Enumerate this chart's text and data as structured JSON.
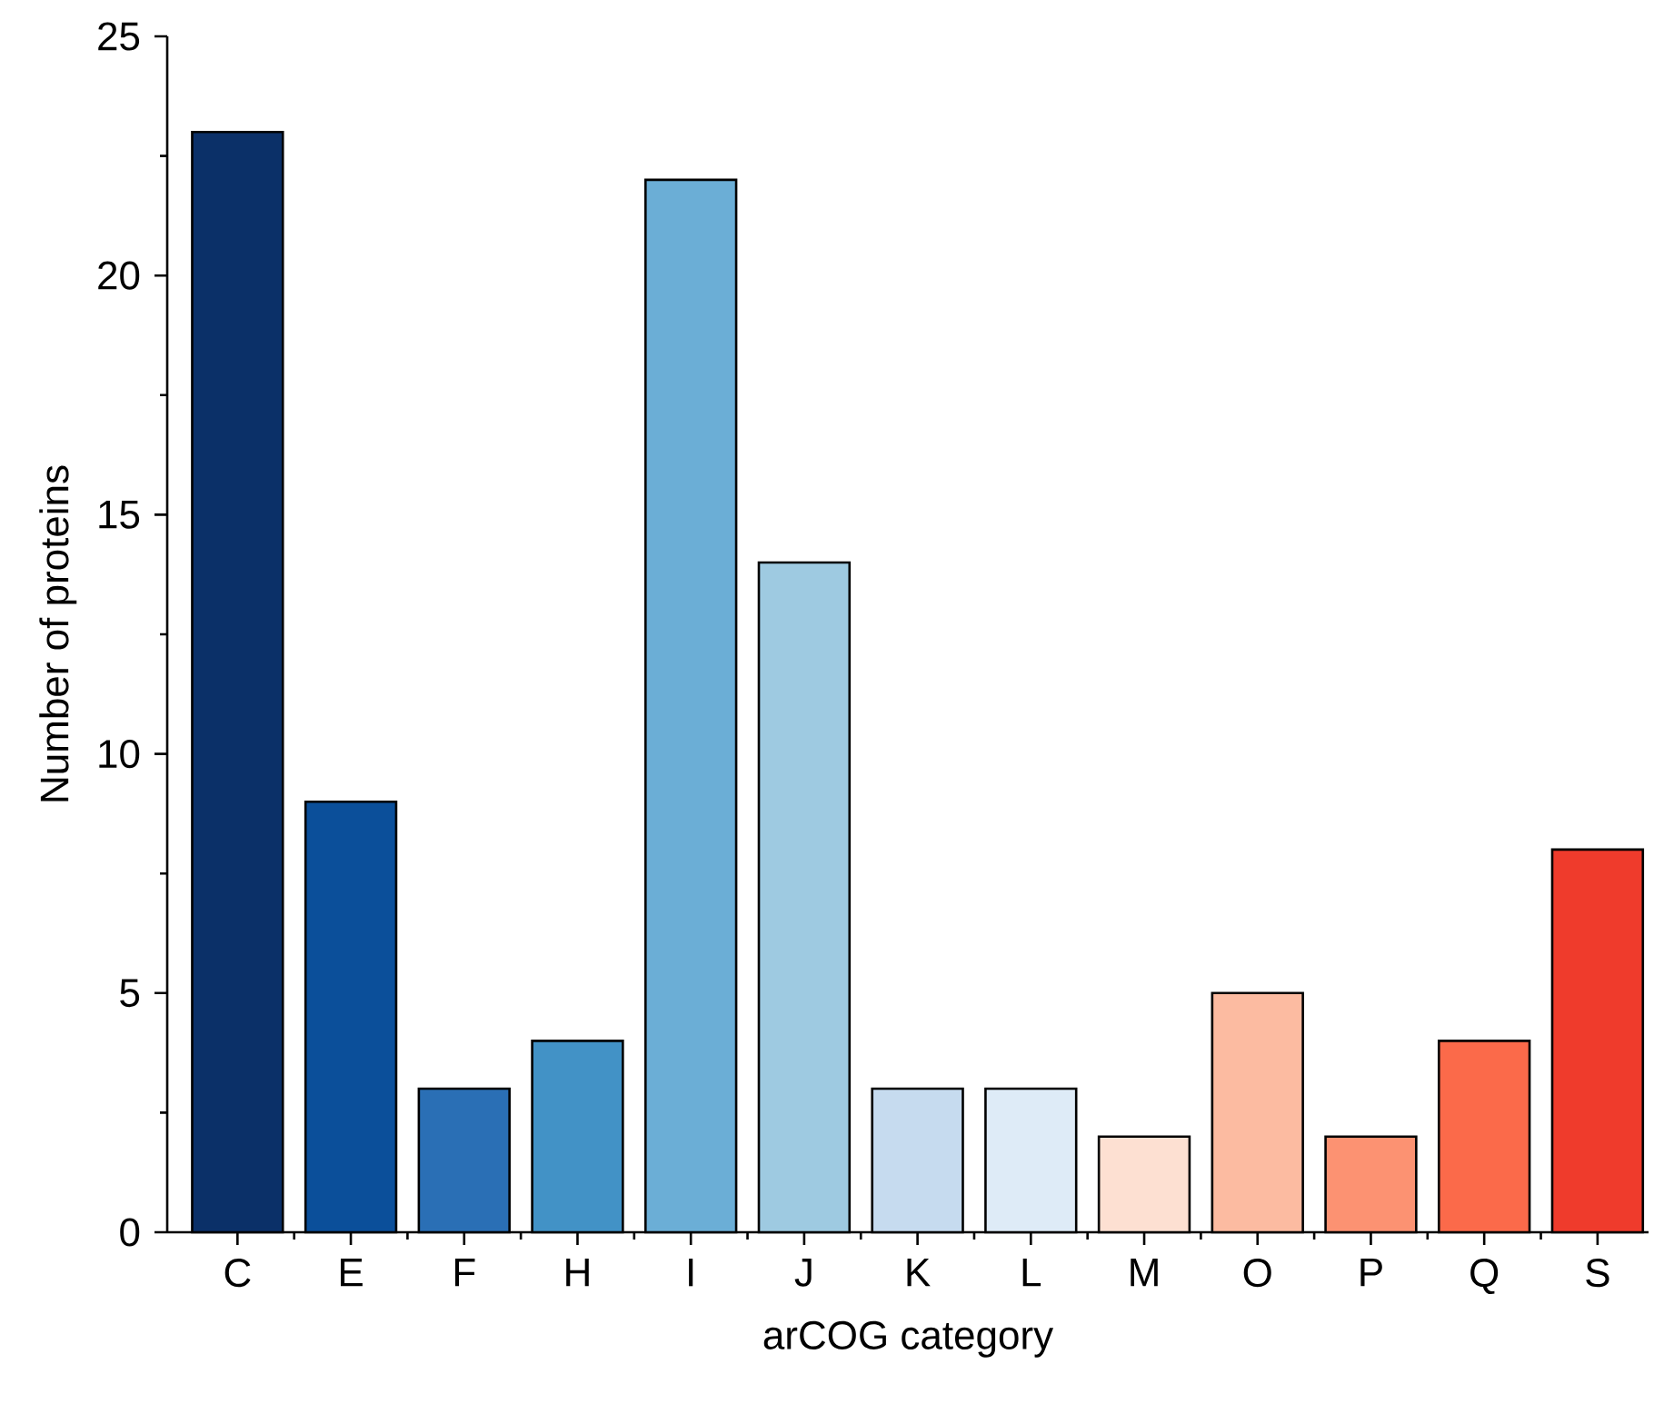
{
  "chart_data": {
    "type": "bar",
    "xlabel": "arCOG category",
    "ylabel": "Number of proteins",
    "categories": [
      "C",
      "E",
      "F",
      "H",
      "I",
      "J",
      "K",
      "L",
      "M",
      "O",
      "P",
      "Q",
      "S"
    ],
    "values": [
      23,
      9,
      3,
      4,
      22,
      14,
      3,
      3,
      2,
      5,
      2,
      4,
      8
    ],
    "colors": [
      "#0b3068",
      "#0b4f9a",
      "#2a6fb5",
      "#4292c6",
      "#6baed6",
      "#9ecae1",
      "#c6dbef",
      "#deebf7",
      "#fde0d2",
      "#fcbba1",
      "#fc9272",
      "#fb6a4a",
      "#ef3b2c"
    ],
    "ylim": [
      0,
      25
    ],
    "yticks": [
      0,
      5,
      10,
      15,
      20,
      25
    ],
    "grid": false
  }
}
